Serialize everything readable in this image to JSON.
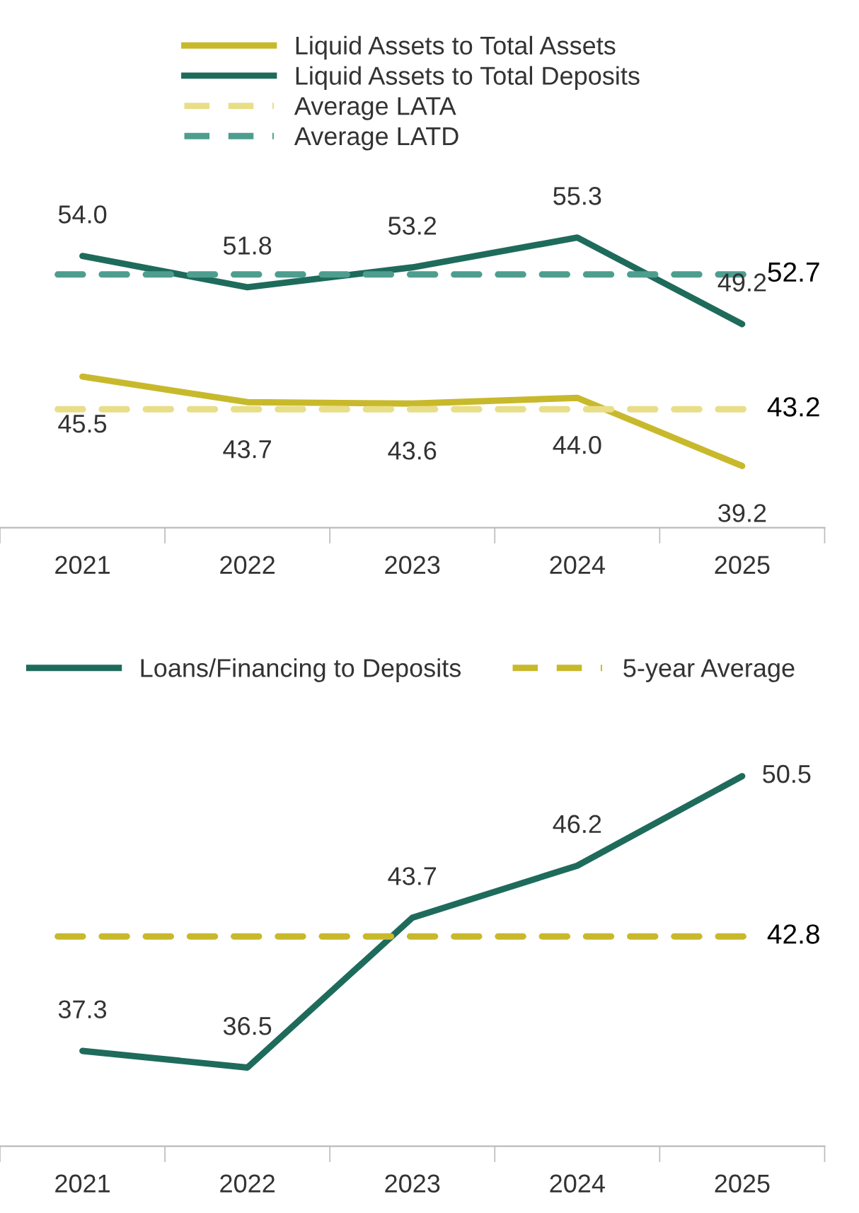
{
  "chart_data": [
    {
      "type": "line",
      "categories": [
        "2021",
        "2022",
        "2023",
        "2024",
        "2025"
      ],
      "series": [
        {
          "name": "Liquid Assets to Total Assets",
          "color": "#c8b92c",
          "values": [
            45.5,
            43.7,
            43.6,
            44.0,
            39.2
          ],
          "value_labels": [
            "45.5",
            "43.7",
            "43.6",
            "44.0",
            "39.2"
          ]
        },
        {
          "name": "Liquid Assets to Total Deposits",
          "color": "#1e6b5c",
          "values": [
            54.0,
            51.8,
            53.2,
            55.3,
            49.2
          ],
          "value_labels": [
            "54.0",
            "51.8",
            "53.2",
            "55.3",
            "49.2"
          ]
        }
      ],
      "ref_lines": [
        {
          "axis": "y",
          "value": 43.2,
          "label": "Average LATA",
          "color": "#e8de88",
          "line_style": "dashed"
        },
        {
          "axis": "y",
          "value": 52.7,
          "label": "Average LATD",
          "color": "#4e9e8f",
          "line_style": "dashed"
        }
      ],
      "annotations": [
        "43.2",
        "52.7"
      ],
      "legend": "top",
      "grid": false,
      "marker": "none",
      "line_style": "solid",
      "tick_labels": "x"
    },
    {
      "type": "line",
      "categories": [
        "2021",
        "2022",
        "2023",
        "2024",
        "2025"
      ],
      "series": [
        {
          "name": "Loans/Financing to Deposits",
          "color": "#1e6b5c",
          "values": [
            37.3,
            36.5,
            43.7,
            46.2,
            50.5
          ],
          "value_labels": [
            "37.3",
            "36.5",
            "43.7",
            "46.2",
            "50.5"
          ]
        }
      ],
      "ref_lines": [
        {
          "axis": "y",
          "value": 42.8,
          "label": "5-year Average",
          "color": "#c8b92c",
          "line_style": "dashed"
        }
      ],
      "annotations": [
        "42.8"
      ],
      "legend": "top",
      "grid": false,
      "marker": "none",
      "line_style": "solid",
      "tick_labels": "x"
    }
  ]
}
